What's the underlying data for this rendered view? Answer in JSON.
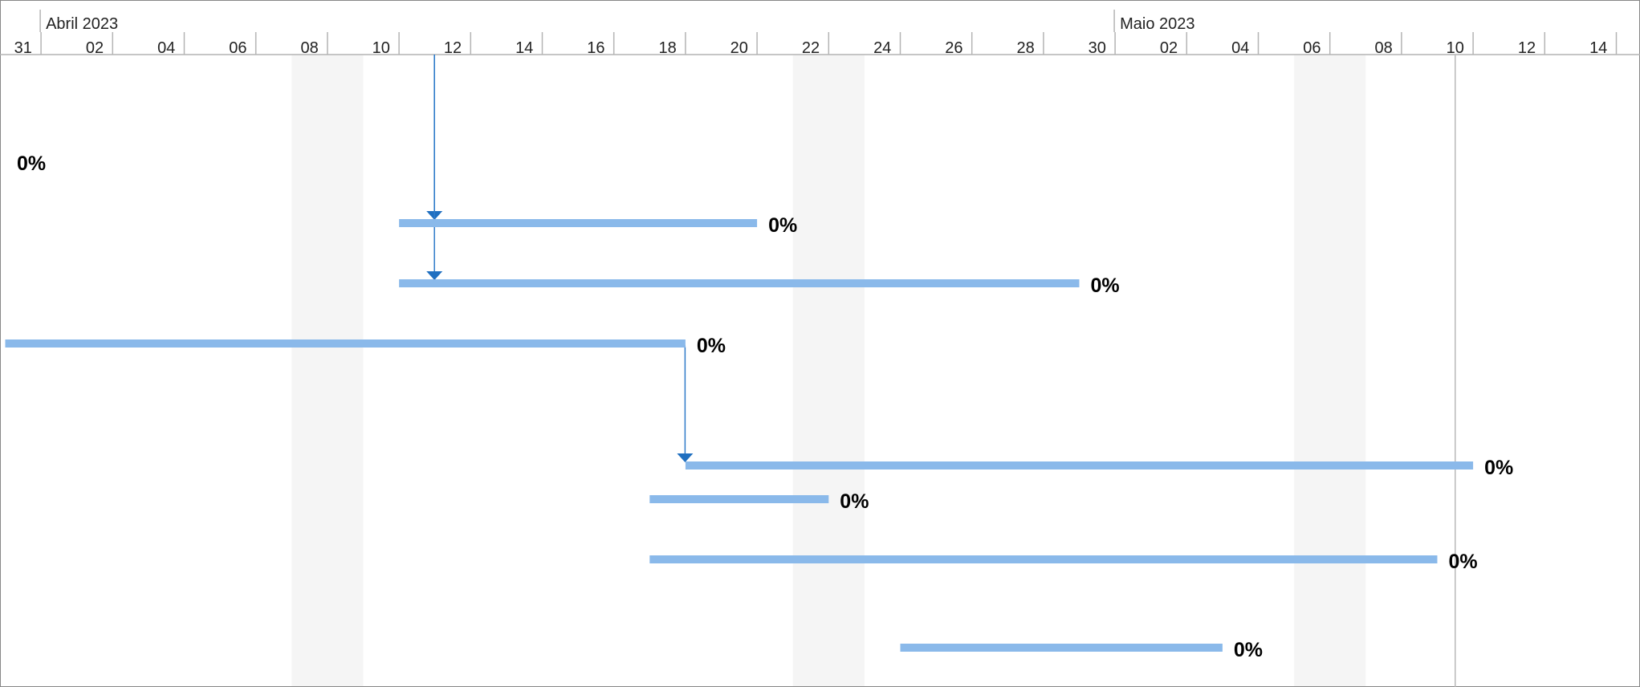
{
  "chart_data": {
    "type": "gantt",
    "x_unit": "days",
    "view_start": "2023-03-31",
    "view_end": "2023-05-15",
    "months": [
      {
        "label": "Abril 2023",
        "start": "2023-04-01"
      },
      {
        "label": "Maio 2023",
        "start": "2023-05-01"
      }
    ],
    "ticks": [
      {
        "date": "2023-03-31",
        "label": "31"
      },
      {
        "date": "2023-04-02",
        "label": "02"
      },
      {
        "date": "2023-04-04",
        "label": "04"
      },
      {
        "date": "2023-04-06",
        "label": "06"
      },
      {
        "date": "2023-04-08",
        "label": "08"
      },
      {
        "date": "2023-04-10",
        "label": "10"
      },
      {
        "date": "2023-04-12",
        "label": "12"
      },
      {
        "date": "2023-04-14",
        "label": "14"
      },
      {
        "date": "2023-04-16",
        "label": "16"
      },
      {
        "date": "2023-04-18",
        "label": "18"
      },
      {
        "date": "2023-04-20",
        "label": "20"
      },
      {
        "date": "2023-04-22",
        "label": "22"
      },
      {
        "date": "2023-04-24",
        "label": "24"
      },
      {
        "date": "2023-04-26",
        "label": "26"
      },
      {
        "date": "2023-04-28",
        "label": "28"
      },
      {
        "date": "2023-04-30",
        "label": "30"
      },
      {
        "date": "2023-05-02",
        "label": "02"
      },
      {
        "date": "2023-05-04",
        "label": "04"
      },
      {
        "date": "2023-05-06",
        "label": "06"
      },
      {
        "date": "2023-05-08",
        "label": "08"
      },
      {
        "date": "2023-05-10",
        "label": "10"
      },
      {
        "date": "2023-05-12",
        "label": "12"
      },
      {
        "date": "2023-05-14",
        "label": "14"
      }
    ],
    "weekends": [
      {
        "start": "2023-04-08",
        "end": "2023-04-10"
      },
      {
        "start": "2023-04-22",
        "end": "2023-04-24"
      },
      {
        "start": "2023-05-06",
        "end": "2023-05-08"
      }
    ],
    "status_date": "2023-05-10",
    "tasks": [
      {
        "row": 0,
        "start": null,
        "end": null,
        "complete": "0%"
      },
      {
        "row": 1,
        "start": "2023-04-11",
        "end": "2023-04-20",
        "complete": "0%"
      },
      {
        "row": 2,
        "start": "2023-04-11",
        "end": "2023-04-29",
        "complete": "0%"
      },
      {
        "row": 3,
        "start": "2023-03-31",
        "end": "2023-04-18",
        "complete": "0%"
      },
      {
        "row": 4,
        "start": "2023-04-19",
        "end": "2023-05-10",
        "complete": "0%"
      },
      {
        "row": 5,
        "start": "2023-04-18",
        "end": "2023-04-22",
        "complete": "0%"
      },
      {
        "row": 6,
        "start": "2023-04-18",
        "end": "2023-05-09",
        "complete": "0%"
      },
      {
        "row": 7,
        "start": "2023-04-25",
        "end": "2023-05-03",
        "complete": "0%"
      }
    ],
    "dependencies": [
      {
        "from": "2023-04-11",
        "to_row": 1
      },
      {
        "from": "2023-04-11",
        "to_row": 2
      },
      {
        "from": "2023-04-18",
        "to_row": 4
      }
    ],
    "colors": {
      "bar": "#8ab9ea",
      "link": "#2f7bc9",
      "arrow": "#1f6fc0",
      "weekend": "#f5f5f5",
      "grid": "#b4b4b4",
      "status_line": "#b9b9b9"
    }
  }
}
